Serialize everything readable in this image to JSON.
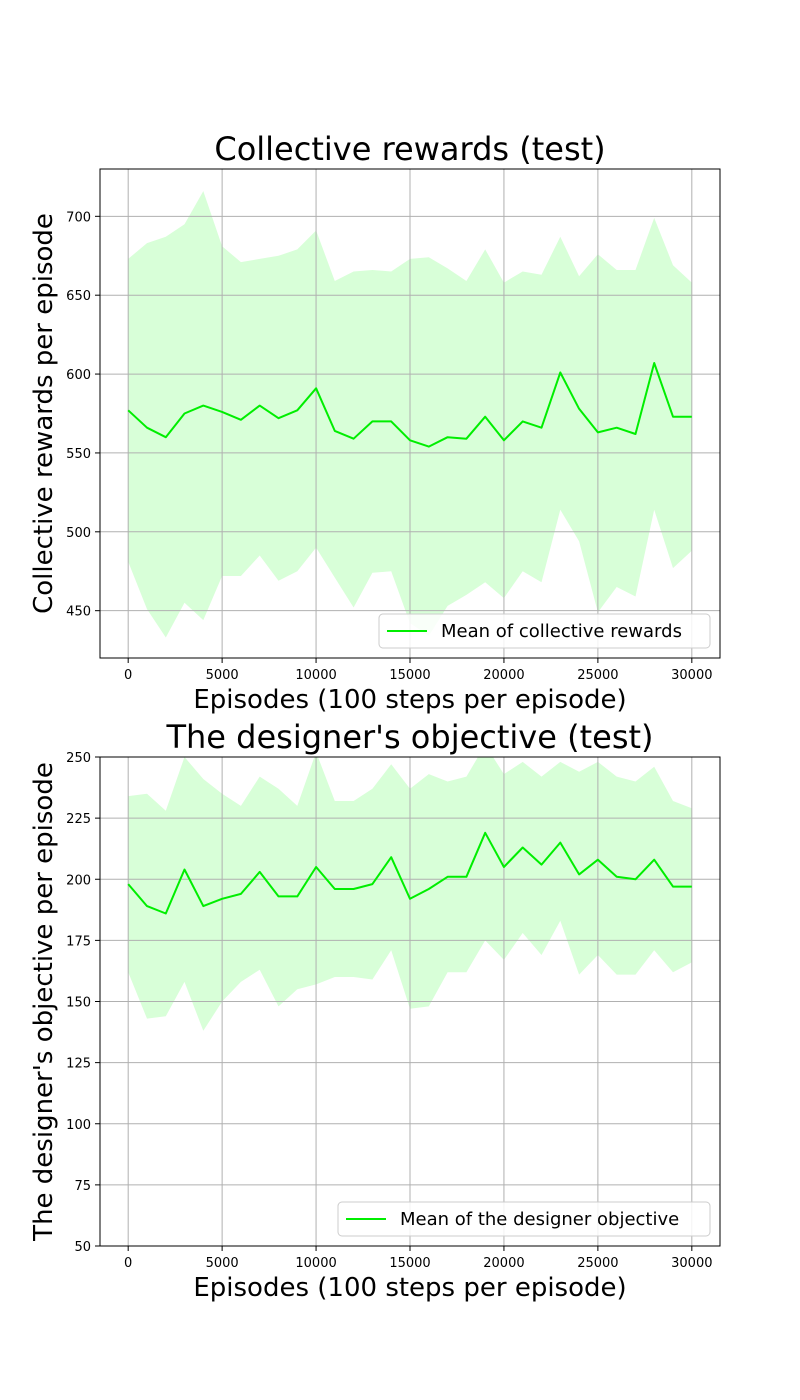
{
  "colors": {
    "line": "#00ee00",
    "band": "#d8ffd8",
    "grid": "#b0b0b0",
    "axis": "#000000",
    "legend_border": "#cccccc"
  },
  "chart_data": [
    {
      "type": "line",
      "title": "Collective rewards (test)",
      "xlabel": "Episodes (100 steps per episode)",
      "ylabel": "Collective rewards per episode",
      "xlim": [
        -1500,
        31500
      ],
      "ylim": [
        420,
        730
      ],
      "xticks": [
        0,
        5000,
        10000,
        15000,
        20000,
        25000,
        30000
      ],
      "yticks": [
        450,
        500,
        550,
        600,
        650,
        700
      ],
      "grid": true,
      "legend_position": "lower-right",
      "x": [
        0,
        1000,
        2000,
        3000,
        4000,
        5000,
        6000,
        7000,
        8000,
        9000,
        10000,
        11000,
        12000,
        13000,
        14000,
        15000,
        16000,
        17000,
        18000,
        19000,
        20000,
        21000,
        22000,
        23000,
        24000,
        25000,
        26000,
        27000,
        28000,
        29000,
        30000
      ],
      "series": [
        {
          "name": "Mean of collective rewards",
          "values": [
            577,
            566,
            560,
            575,
            580,
            576,
            571,
            580,
            572,
            577,
            591,
            564,
            559,
            570,
            570,
            558,
            554,
            560,
            559,
            573,
            558,
            570,
            566,
            601,
            578,
            563,
            566,
            562,
            607,
            573,
            573
          ],
          "upper": [
            673,
            683,
            687,
            695,
            716,
            681,
            671,
            673,
            675,
            679,
            691,
            659,
            665,
            666,
            665,
            673,
            674,
            667,
            659,
            679,
            658,
            665,
            663,
            687,
            662,
            676,
            666,
            666,
            699,
            669,
            658
          ],
          "lower": [
            481,
            451,
            433,
            455,
            444,
            472,
            472,
            485,
            469,
            475,
            490,
            471,
            452,
            474,
            475,
            442,
            434,
            453,
            460,
            468,
            458,
            475,
            468,
            514,
            494,
            449,
            465,
            459,
            514,
            477,
            488
          ]
        }
      ]
    },
    {
      "type": "line",
      "title": "The designer's objective (test)",
      "xlabel": "Episodes (100 steps per episode)",
      "ylabel": "The designer's objective per episode",
      "xlim": [
        -1500,
        31500
      ],
      "ylim": [
        50,
        250
      ],
      "xticks": [
        0,
        5000,
        10000,
        15000,
        20000,
        25000,
        30000
      ],
      "yticks": [
        50,
        75,
        100,
        125,
        150,
        175,
        200,
        225,
        250
      ],
      "grid": true,
      "legend_position": "lower-right",
      "x": [
        0,
        1000,
        2000,
        3000,
        4000,
        5000,
        6000,
        7000,
        8000,
        9000,
        10000,
        11000,
        12000,
        13000,
        14000,
        15000,
        16000,
        17000,
        18000,
        19000,
        20000,
        21000,
        22000,
        23000,
        24000,
        25000,
        26000,
        27000,
        28000,
        29000,
        30000
      ],
      "series": [
        {
          "name": "Mean of the designer objective",
          "values": [
            198,
            189,
            186,
            204,
            189,
            192,
            194,
            203,
            193,
            193,
            205,
            196,
            196,
            198,
            209,
            192,
            196,
            201,
            201,
            219,
            205,
            213,
            206,
            215,
            202,
            208,
            201,
            200,
            208,
            197,
            197
          ],
          "upper": [
            234,
            235,
            228,
            250,
            241,
            235,
            230,
            242,
            237,
            230,
            252,
            232,
            232,
            237,
            247,
            237,
            243,
            240,
            242,
            255,
            243,
            248,
            242,
            248,
            244,
            248,
            242,
            240,
            246,
            232,
            229
          ],
          "lower": [
            162,
            143,
            144,
            158,
            138,
            150,
            158,
            163,
            148,
            155,
            157,
            160,
            160,
            159,
            171,
            147,
            148,
            162,
            162,
            175,
            167,
            178,
            169,
            183,
            161,
            169,
            161,
            161,
            171,
            162,
            166
          ]
        }
      ]
    }
  ]
}
